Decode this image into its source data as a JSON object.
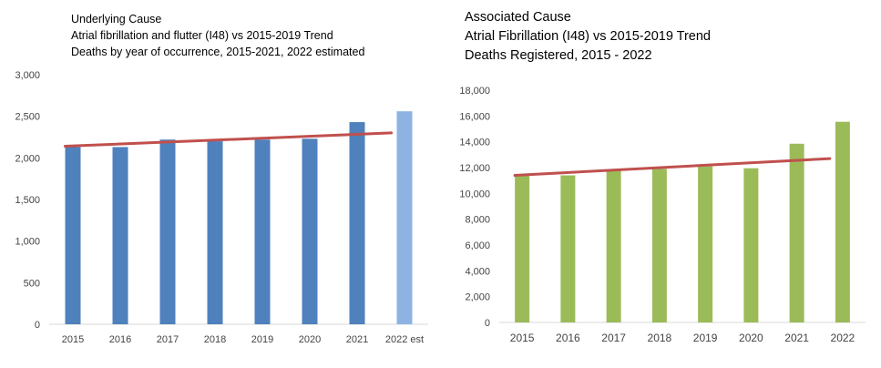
{
  "chart_data": [
    {
      "type": "bar",
      "title_lines": [
        "Underlying Cause",
        "Atrial fibrillation and flutter (I48) vs 2015-2019 Trend",
        "Deaths by year of occurrence, 2015-2021, 2022 estimated"
      ],
      "categories": [
        "2015",
        "2016",
        "2017",
        "2018",
        "2019",
        "2020",
        "2021",
        "2022 est"
      ],
      "values": [
        2130,
        2130,
        2220,
        2200,
        2220,
        2230,
        2430,
        2560
      ],
      "estimated_index": 7,
      "trend": {
        "name": "2015-2019 Trend",
        "start": 2140,
        "end": 2300
      },
      "ylim": [
        0,
        3000
      ],
      "yticks": [
        0,
        500,
        1000,
        1500,
        2000,
        2500,
        3000
      ],
      "ytick_labels": [
        "0",
        "500",
        "1,000",
        "1,500",
        "2,000",
        "2,500",
        "3,000"
      ],
      "colors": {
        "bar": "#4f81bd",
        "estimated_bar": "#8db3e2",
        "trend": "#c0504d"
      }
    },
    {
      "type": "bar",
      "title_lines": [
        "Associated Cause",
        "Atrial Fibrillation (I48) vs 2015-2019 Trend",
        "Deaths Registered, 2015 - 2022"
      ],
      "categories": [
        "2015",
        "2016",
        "2017",
        "2018",
        "2019",
        "2020",
        "2021",
        "2022"
      ],
      "values": [
        11500,
        11400,
        11800,
        11900,
        12100,
        11950,
        13850,
        15550
      ],
      "trend": {
        "name": "2015-2019 Trend",
        "start": 11400,
        "end": 12700
      },
      "ylim": [
        0,
        18000
      ],
      "yticks": [
        0,
        2000,
        4000,
        6000,
        8000,
        10000,
        12000,
        14000,
        16000,
        18000
      ],
      "ytick_labels": [
        "0",
        "2,000",
        "4,000",
        "6,000",
        "8,000",
        "10,000",
        "12,000",
        "14,000",
        "16,000",
        "18,000"
      ],
      "colors": {
        "bar": "#9bbb59",
        "trend": "#c0504d"
      }
    }
  ]
}
